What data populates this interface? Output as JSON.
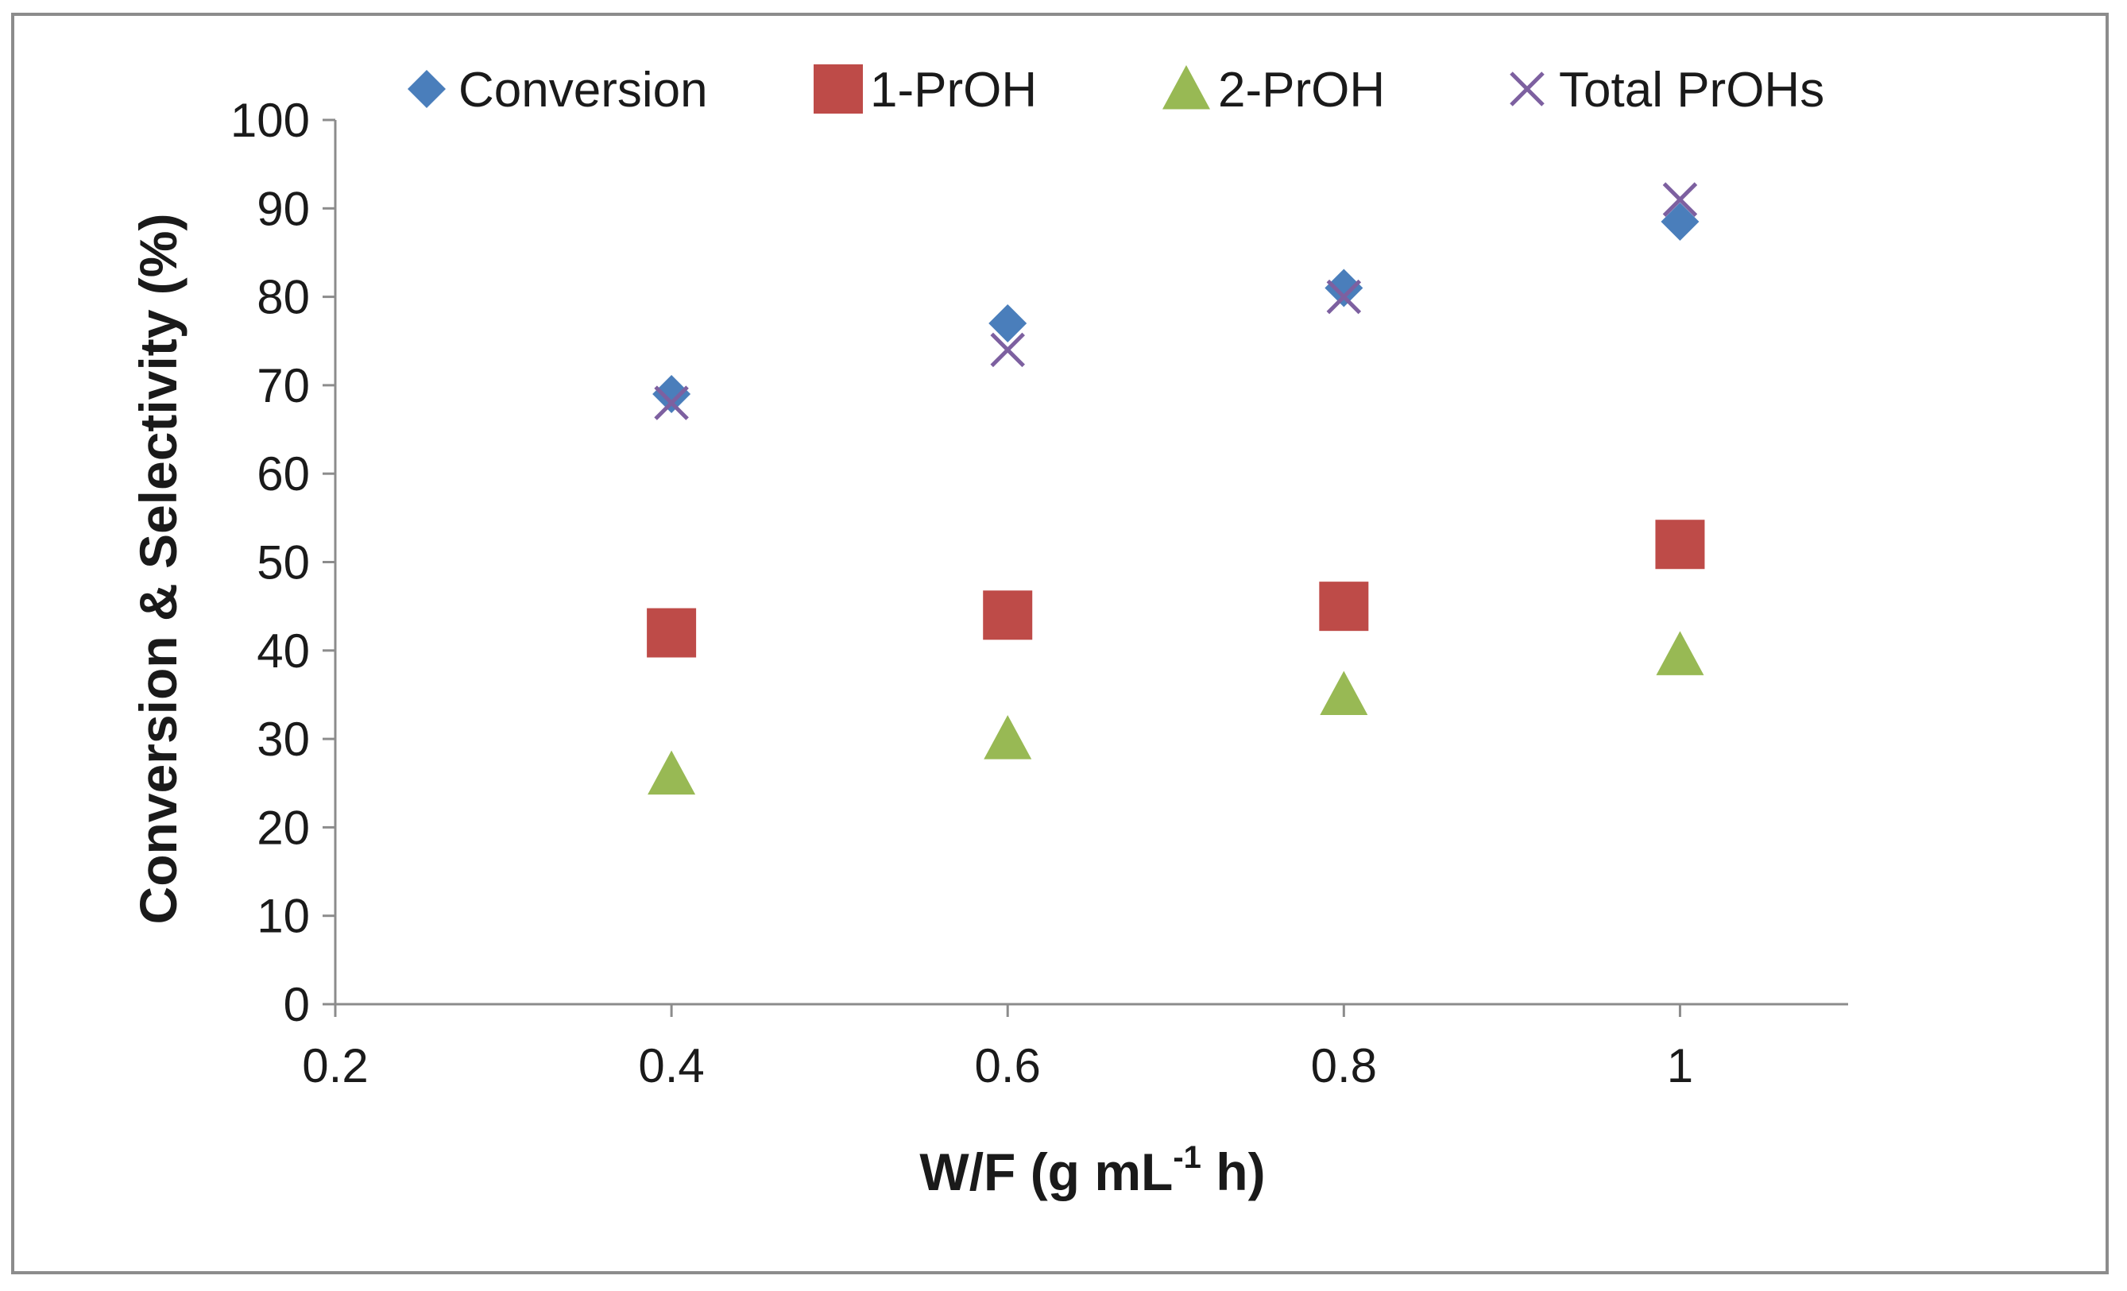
{
  "chart_data": {
    "type": "scatter",
    "title": "",
    "xlabel": {
      "main": "W/F (g mL",
      "superscript": "-1",
      "tail": " h)"
    },
    "ylabel": "Conversion & Selectivity (%)",
    "xlim": [
      0.2,
      1.1
    ],
    "ylim": [
      0,
      100
    ],
    "xticks": [
      "0.2",
      "0.4",
      "0.6",
      "0.8",
      "1"
    ],
    "yticks": [
      "0",
      "10",
      "20",
      "30",
      "40",
      "50",
      "60",
      "70",
      "80",
      "90",
      "100"
    ],
    "grid": false,
    "legend_position": "top",
    "series": [
      {
        "name": "Conversion",
        "marker": "diamond",
        "color": "#4a7ebb",
        "x": [
          0.4,
          0.6,
          0.8,
          1.0
        ],
        "y": [
          69,
          77,
          81,
          88.5
        ]
      },
      {
        "name": "1-PrOH",
        "marker": "square",
        "color": "#be4b48",
        "x": [
          0.4,
          0.6,
          0.8,
          1.0
        ],
        "y": [
          42,
          44,
          45,
          52
        ]
      },
      {
        "name": "2-PrOH",
        "marker": "triangle",
        "color": "#98b954",
        "x": [
          0.4,
          0.6,
          0.8,
          1.0
        ],
        "y": [
          26,
          30,
          35,
          39.5
        ]
      },
      {
        "name": "Total PrOHs",
        "marker": "x",
        "color": "#7d60a0",
        "x": [
          0.4,
          0.6,
          0.8,
          1.0
        ],
        "y": [
          68,
          74,
          80,
          91
        ]
      }
    ]
  }
}
